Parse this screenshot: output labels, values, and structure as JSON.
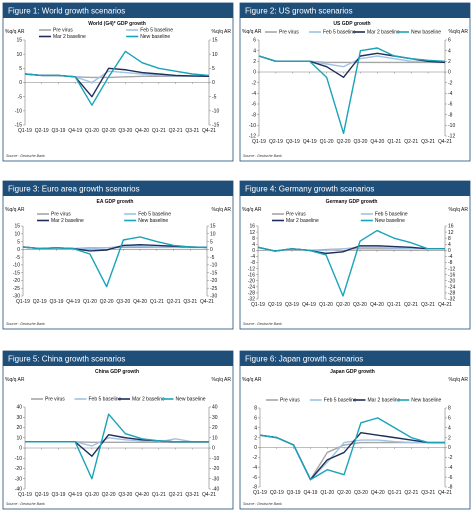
{
  "colors": {
    "header_bg": "#1f4e79",
    "panel_border": "#1f4e79",
    "axis": "#7f7f7f",
    "pre_virus": "#a6a6a6",
    "feb5": "#9dc3e6",
    "mar2": "#1f2e5a",
    "new": "#1aa3b8"
  },
  "source_text": "Source : Deutsche Bank",
  "chart_data": [
    {
      "type": "line",
      "figure": "Figure 1: World growth scenarios",
      "title": "World (G4)* GDP growth",
      "ylabel_left": "%q/q AR",
      "ylabel_right": "%q/q AR",
      "categories": [
        "Q1-19",
        "Q2-19",
        "Q3-19",
        "Q4-19",
        "Q1-20",
        "Q2-20",
        "Q3-20",
        "Q4-20",
        "Q1-21",
        "Q2-21",
        "Q3-21",
        "Q4-21"
      ],
      "ylim": [
        -15,
        15
      ],
      "yticks": [
        -15,
        -10,
        -5,
        0,
        5,
        10,
        15
      ],
      "legend_layout": "twocol",
      "series": [
        {
          "name": "Pre virus",
          "color_key": "pre_virus",
          "values": [
            3,
            2.5,
            2.5,
            2,
            1.8,
            1.8,
            2,
            2.2,
            2.2,
            2.2,
            2.2,
            2.2
          ]
        },
        {
          "name": "Feb 5 baseline",
          "color_key": "feb5",
          "values": [
            3,
            2.5,
            2.5,
            2,
            0,
            4,
            3.5,
            3,
            2.5,
            2.3,
            2.2,
            2.2
          ]
        },
        {
          "name": "Mar 2 baseline",
          "color_key": "mar2",
          "values": [
            3,
            2.5,
            2.5,
            2,
            -5,
            5,
            4.5,
            3.5,
            3,
            2.5,
            2.3,
            2.2
          ]
        },
        {
          "name": "New baseline",
          "color_key": "new",
          "values": [
            3,
            2.5,
            2.5,
            2,
            -8,
            2,
            11,
            7,
            5,
            4,
            3,
            2.5
          ]
        }
      ]
    },
    {
      "type": "line",
      "figure": "Figure 2: US growth scenarios",
      "title": "US GDP growth",
      "ylabel_left": "%q/q AR",
      "ylabel_right": "%q/q AR",
      "categories": [
        "Q1-19",
        "Q2-19",
        "Q3-19",
        "Q4-19",
        "Q1-20",
        "Q2-20",
        "Q3-20",
        "Q4-20",
        "Q1-21",
        "Q2-21",
        "Q3-21",
        "Q4-21"
      ],
      "ylim": [
        -12,
        6
      ],
      "yticks": [
        -12,
        -10,
        -8,
        -6,
        -4,
        -2,
        0,
        2,
        4,
        6
      ],
      "legend_layout": "row",
      "series": [
        {
          "name": "Pre virus",
          "color_key": "pre_virus",
          "values": [
            3,
            2,
            2,
            2,
            1.8,
            1.8,
            1.8,
            1.8,
            1.8,
            1.8,
            1.8,
            1.8
          ]
        },
        {
          "name": "Feb 5 baseline",
          "color_key": "feb5",
          "values": [
            3,
            2,
            2,
            2,
            1.5,
            1,
            2.5,
            3,
            2.5,
            2,
            2,
            1.8
          ]
        },
        {
          "name": "Mar 2 baseline",
          "color_key": "mar2",
          "values": [
            3,
            2,
            2,
            2,
            1,
            -1,
            3,
            3.5,
            3,
            2.5,
            2,
            1.8
          ]
        },
        {
          "name": "New baseline",
          "color_key": "new",
          "values": [
            3,
            2,
            2,
            2,
            -1,
            -11.5,
            4,
            4.5,
            3,
            2.5,
            2.2,
            2
          ]
        }
      ]
    },
    {
      "type": "line",
      "figure": "Figure 3: Euro area growth scenarios",
      "title": "EA GDP growth",
      "ylabel_left": "%q/q AR",
      "ylabel_right": "%q/q AR",
      "categories": [
        "Q1-19",
        "Q2-19",
        "Q3-19",
        "Q4-19",
        "Q1-20",
        "Q2-20",
        "Q3-20",
        "Q4-20",
        "Q1-21",
        "Q2-21",
        "Q3-21",
        "Q4-21"
      ],
      "ylim": [
        -30,
        15
      ],
      "yticks": [
        -30,
        -25,
        -20,
        -15,
        -10,
        -5,
        0,
        5,
        10,
        15
      ],
      "legend_layout": "twocol",
      "series": [
        {
          "name": "Pre virus",
          "color_key": "pre_virus",
          "values": [
            1.5,
            0.5,
            1,
            0.5,
            1,
            1,
            1.2,
            1.2,
            1.2,
            1.2,
            1.2,
            1.2
          ]
        },
        {
          "name": "Feb 5 baseline",
          "color_key": "feb5",
          "values": [
            1.5,
            0.5,
            1,
            0.5,
            0.5,
            1,
            2,
            2,
            1.5,
            1.5,
            1.2,
            1.2
          ]
        },
        {
          "name": "Mar 2 baseline",
          "color_key": "mar2",
          "values": [
            1.5,
            0.5,
            1,
            0.5,
            -1,
            -0.5,
            2.5,
            3,
            2.5,
            2,
            1.5,
            1.2
          ]
        },
        {
          "name": "New baseline",
          "color_key": "new",
          "values": [
            1.5,
            0.5,
            1,
            0.5,
            -3,
            -24,
            6,
            8,
            5,
            2.5,
            1.5,
            1.2
          ]
        }
      ]
    },
    {
      "type": "line",
      "figure": "Figure 4: Germany growth scenarios",
      "title": "Germany GDP growth",
      "ylabel_left": "%q/q AR",
      "ylabel_right": "%q/q AR",
      "categories": [
        "Q1-19",
        "Q2-19",
        "Q3-19",
        "Q4-19",
        "Q1-20",
        "Q2-20",
        "Q3-20",
        "Q4-20",
        "Q1-21",
        "Q2-21",
        "Q3-21",
        "Q4-21"
      ],
      "ylim": [
        -32,
        16
      ],
      "yticks": [
        -32,
        -28,
        -24,
        -20,
        -16,
        -12,
        -8,
        -4,
        0,
        4,
        8,
        12,
        16
      ],
      "legend_layout": "twocol",
      "series": [
        {
          "name": "Pre virus",
          "color_key": "pre_virus",
          "values": [
            2,
            -0.5,
            1,
            0,
            0.5,
            1,
            1,
            1,
            1,
            1,
            1,
            1
          ]
        },
        {
          "name": "Feb 5 baseline",
          "color_key": "feb5",
          "values": [
            2,
            -0.5,
            1,
            0,
            0,
            1,
            2,
            2,
            1.5,
            1.2,
            1,
            1
          ]
        },
        {
          "name": "Mar 2 baseline",
          "color_key": "mar2",
          "values": [
            2,
            -0.5,
            1,
            0,
            -2,
            -1,
            3,
            3,
            2.5,
            2,
            1,
            1
          ]
        },
        {
          "name": "New baseline",
          "color_key": "new",
          "values": [
            2,
            -0.5,
            1,
            0,
            -3,
            -30,
            6,
            13,
            8,
            5,
            1,
            1
          ]
        }
      ]
    },
    {
      "type": "line",
      "figure": "Figure 5: China growth scenarios",
      "title": "China GDP growth",
      "ylabel_left": "%q/q AR",
      "ylabel_right": "%q/q AR",
      "categories": [
        "Q1-19",
        "Q2-19",
        "Q3-19",
        "Q4-19",
        "Q1-20",
        "Q2-20",
        "Q3-20",
        "Q4-20",
        "Q1-21",
        "Q2-21",
        "Q3-21",
        "Q4-21"
      ],
      "ylim": [
        -40,
        40
      ],
      "yticks": [
        -40,
        -30,
        -20,
        -10,
        0,
        10,
        20,
        30,
        40
      ],
      "legend_layout": "row",
      "series": [
        {
          "name": "Pre virus",
          "color_key": "pre_virus",
          "values": [
            6,
            6,
            6,
            6,
            5.5,
            5.5,
            5.5,
            5.5,
            5.5,
            5.5,
            5.5,
            5.5
          ]
        },
        {
          "name": "Feb 5 baseline",
          "color_key": "feb5",
          "values": [
            6,
            6,
            6,
            6,
            2,
            10,
            8,
            7,
            6,
            9,
            6,
            6
          ]
        },
        {
          "name": "Mar 2 baseline",
          "color_key": "mar2",
          "values": [
            6,
            6,
            6,
            6,
            -8,
            13,
            10,
            8,
            7,
            6,
            6,
            6
          ]
        },
        {
          "name": "New baseline",
          "color_key": "new",
          "values": [
            6,
            6,
            6,
            6,
            -30,
            33,
            14,
            9,
            7,
            6,
            6,
            6
          ]
        }
      ]
    },
    {
      "type": "line",
      "figure": "Figure 6: Japan growth scenarios",
      "title": "Japan GDP growth",
      "ylabel_left": "%q/q AR",
      "ylabel_right": "%q/q AR",
      "categories": [
        "Q1-19",
        "Q2-19",
        "Q3-19",
        "Q4-19",
        "Q1-20",
        "Q2-20",
        "Q3-20",
        "Q4-20",
        "Q1-21",
        "Q2-21",
        "Q3-21",
        "Q4-21"
      ],
      "ylim": [
        -8,
        8
      ],
      "yticks": [
        -8,
        -6,
        -4,
        -2,
        0,
        2,
        4,
        6,
        8
      ],
      "legend_layout": "row",
      "series": [
        {
          "name": "Pre virus",
          "color_key": "pre_virus",
          "values": [
            2.5,
            2,
            0.5,
            -6.5,
            -1,
            0.5,
            1,
            1,
            1,
            1,
            1,
            1
          ]
        },
        {
          "name": "Feb 5 baseline",
          "color_key": "feb5",
          "values": [
            2.5,
            2,
            0.5,
            -6.5,
            -3,
            1,
            1.5,
            1.5,
            1.2,
            1,
            1,
            1
          ]
        },
        {
          "name": "Mar 2 baseline",
          "color_key": "mar2",
          "values": [
            2.5,
            2,
            0.5,
            -6.5,
            -2.5,
            -1,
            3,
            2.5,
            2,
            1.5,
            1,
            1
          ]
        },
        {
          "name": "New baseline",
          "color_key": "new",
          "values": [
            2.5,
            2,
            0.5,
            -6.5,
            -4.5,
            -5.5,
            5,
            6,
            4,
            2,
            1,
            1
          ]
        }
      ]
    }
  ]
}
